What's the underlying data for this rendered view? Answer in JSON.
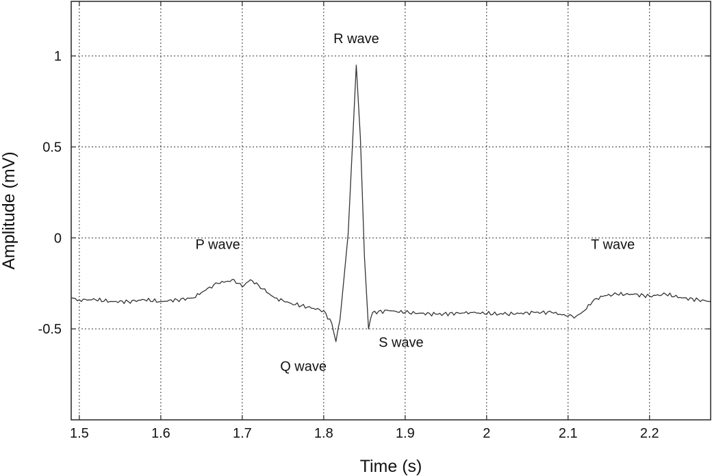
{
  "chart_data": {
    "type": "line",
    "title": "",
    "xlabel": "Time (s)",
    "ylabel": "Amplitude (mV)",
    "xlim": [
      1.49,
      2.275
    ],
    "ylim": [
      -1.0,
      1.3
    ],
    "xticks": [
      1.5,
      1.6,
      1.7,
      1.8,
      1.9,
      2.0,
      2.1,
      2.2
    ],
    "xtick_labels": [
      "1.5",
      "1.6",
      "1.7",
      "1.8",
      "1.9",
      "2",
      "2.1",
      "2.2"
    ],
    "yticks": [
      -0.5,
      0,
      0.5,
      1
    ],
    "ytick_labels": [
      "-0.5",
      "0",
      "0.5",
      "1"
    ],
    "grid": true,
    "series": [
      {
        "name": "",
        "color": "#333333",
        "x": [
          1.49,
          1.5,
          1.52,
          1.54,
          1.56,
          1.58,
          1.6,
          1.62,
          1.64,
          1.65,
          1.66,
          1.67,
          1.68,
          1.69,
          1.7,
          1.71,
          1.72,
          1.73,
          1.74,
          1.76,
          1.78,
          1.8,
          1.81,
          1.815,
          1.82,
          1.83,
          1.84,
          1.845,
          1.85,
          1.855,
          1.86,
          1.88,
          1.9,
          1.94,
          1.98,
          2.02,
          2.06,
          2.08,
          2.1,
          2.11,
          2.12,
          2.13,
          2.14,
          2.16,
          2.18,
          2.2,
          2.22,
          2.24,
          2.26,
          2.275
        ],
        "y": [
          -0.33,
          -0.34,
          -0.34,
          -0.35,
          -0.35,
          -0.34,
          -0.35,
          -0.34,
          -0.33,
          -0.3,
          -0.27,
          -0.25,
          -0.24,
          -0.23,
          -0.27,
          -0.23,
          -0.26,
          -0.3,
          -0.33,
          -0.36,
          -0.38,
          -0.4,
          -0.47,
          -0.57,
          -0.45,
          0.02,
          0.95,
          0.55,
          -0.1,
          -0.5,
          -0.41,
          -0.4,
          -0.41,
          -0.42,
          -0.41,
          -0.42,
          -0.41,
          -0.41,
          -0.43,
          -0.43,
          -0.4,
          -0.35,
          -0.32,
          -0.31,
          -0.31,
          -0.32,
          -0.31,
          -0.33,
          -0.34,
          -0.35
        ]
      }
    ],
    "annotations": [
      {
        "text": "R wave",
        "x": 1.84,
        "y": 1.07
      },
      {
        "text": "P wave",
        "x": 1.67,
        "y": -0.06
      },
      {
        "text": "T wave",
        "x": 2.155,
        "y": -0.06
      },
      {
        "text": "S wave",
        "x": 1.895,
        "y": -0.6
      },
      {
        "text": "Q wave",
        "x": 1.775,
        "y": -0.73
      }
    ]
  }
}
